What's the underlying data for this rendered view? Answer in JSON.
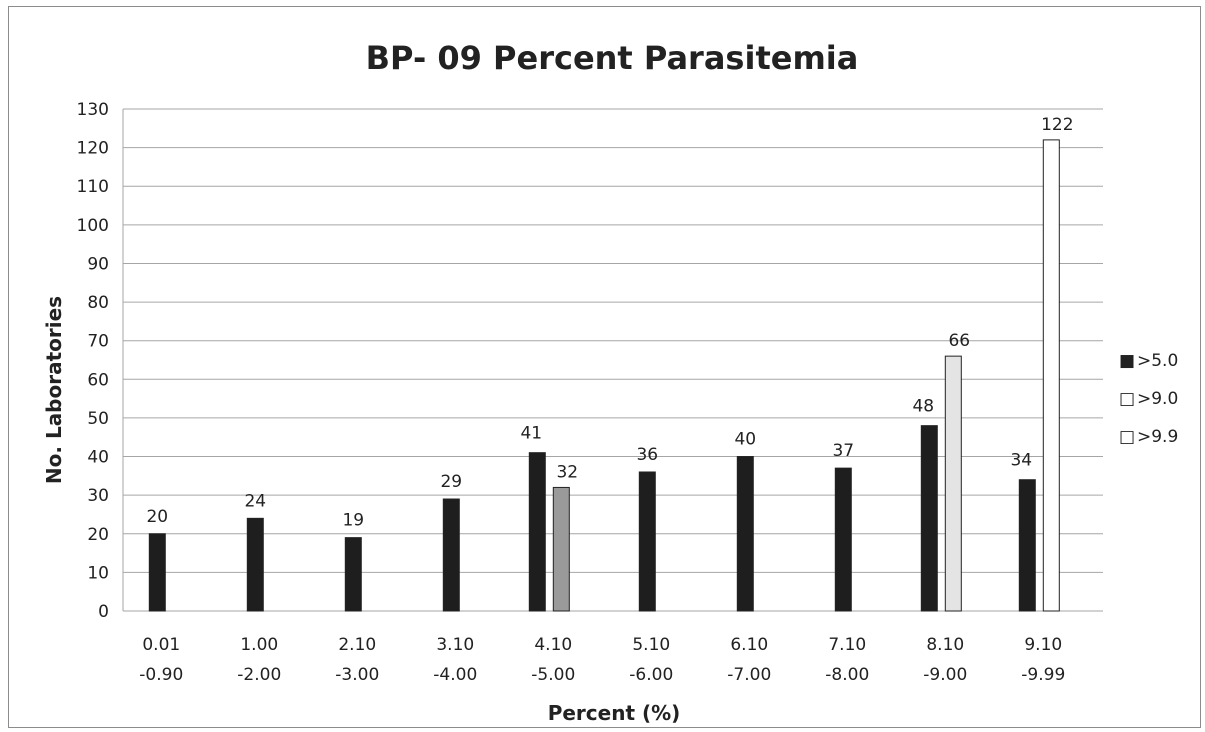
{
  "chart_data": {
    "type": "bar",
    "title": "BP- 09 Percent Parasitemia",
    "xlabel": "Percent (%)",
    "ylabel": "No. Laboratories",
    "ylim": [
      0,
      130
    ],
    "ytick_step": 10,
    "grid": true,
    "legend_position": "right",
    "categories": [
      [
        "0.01",
        "-0.90"
      ],
      [
        "1.00",
        "-2.00"
      ],
      [
        "2.10",
        "-3.00"
      ],
      [
        "3.10",
        "-4.00"
      ],
      [
        "4.10",
        "-5.00"
      ],
      [
        "5.10",
        "-6.00"
      ],
      [
        "6.10",
        "-7.00"
      ],
      [
        "7.10",
        "-8.00"
      ],
      [
        "8.10",
        "-9.00"
      ],
      [
        "9.10",
        "-9.99"
      ]
    ],
    "series": [
      {
        "name": ">5.0",
        "color": "#1e1e1e",
        "values": [
          20,
          24,
          19,
          29,
          41,
          36,
          40,
          37,
          48,
          34
        ]
      },
      {
        "name": ">9.0",
        "color": "#9a9a9a",
        "values": [
          null,
          null,
          null,
          null,
          32,
          null,
          null,
          null,
          66,
          null
        ]
      },
      {
        "name": ">9.9",
        "color": "#ffffff",
        "values": [
          null,
          null,
          null,
          null,
          null,
          null,
          null,
          null,
          null,
          122
        ]
      }
    ],
    "legend_markers": [
      "■",
      "□",
      "□"
    ],
    "bar_colors_override": {
      "1.8": "#e4e4e4"
    }
  }
}
